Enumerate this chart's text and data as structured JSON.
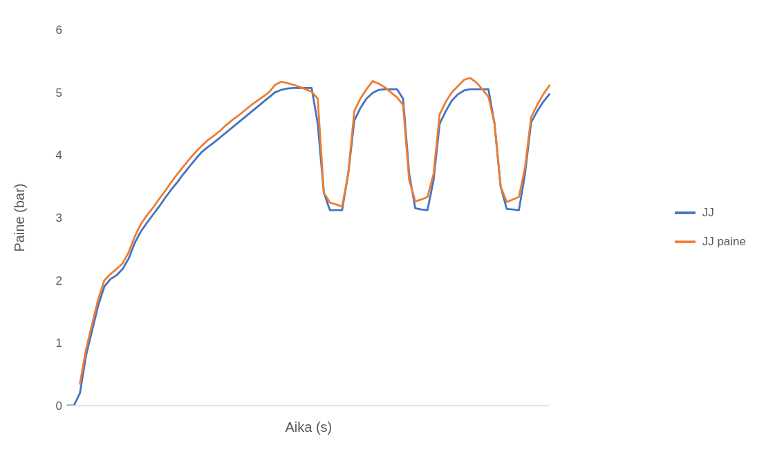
{
  "chart_data": {
    "type": "line",
    "xlabel": "Aika (s)",
    "ylabel": "Paine (bar)",
    "categories": [
      null,
      null,
      null,
      null,
      null,
      null,
      null,
      null,
      null,
      null,
      null,
      null,
      null,
      null,
      null,
      null,
      null,
      null,
      null,
      null,
      null,
      null,
      null,
      null,
      null,
      null,
      null,
      null,
      null,
      null,
      null,
      null,
      null,
      null,
      null,
      null,
      null,
      null,
      null,
      null,
      null,
      null,
      null,
      null,
      null,
      null,
      null,
      null,
      null,
      null,
      null,
      null,
      null,
      null,
      null,
      null,
      null,
      null,
      null,
      null,
      null,
      null,
      null,
      null,
      null,
      null,
      null,
      null,
      null,
      null,
      null,
      null,
      null,
      null,
      null,
      null,
      null,
      null,
      null,
      null
    ],
    "series": [
      {
        "name": "JJ",
        "color": "#4472c4",
        "values": [
          0,
          0,
          0.2,
          0.8,
          1.2,
          1.6,
          1.9,
          2.02,
          2.08,
          2.18,
          2.35,
          2.6,
          2.78,
          2.92,
          3.05,
          3.18,
          3.32,
          3.45,
          3.57,
          3.7,
          3.82,
          3.94,
          4.05,
          4.13,
          4.2,
          4.28,
          4.36,
          4.44,
          4.52,
          4.6,
          4.68,
          4.76,
          4.84,
          4.92,
          5.0,
          5.04,
          5.06,
          5.07,
          5.07,
          5.07,
          5.07,
          4.5,
          3.4,
          3.12,
          3.12,
          3.12,
          3.7,
          4.55,
          4.75,
          4.9,
          4.99,
          5.04,
          5.05,
          5.05,
          5.05,
          4.9,
          3.7,
          3.15,
          3.13,
          3.12,
          3.6,
          4.5,
          4.7,
          4.87,
          4.97,
          5.03,
          5.05,
          5.05,
          5.05,
          5.05,
          4.5,
          3.5,
          3.14,
          3.13,
          3.12,
          3.7,
          4.52,
          4.7,
          4.85,
          4.97
        ]
      },
      {
        "name": "JJ paine",
        "color": "#ed7d31",
        "values": [
          null,
          null,
          0.35,
          0.9,
          1.3,
          1.7,
          2.0,
          2.1,
          2.18,
          2.27,
          2.45,
          2.7,
          2.9,
          3.04,
          3.16,
          3.3,
          3.43,
          3.57,
          3.7,
          3.82,
          3.94,
          4.05,
          4.15,
          4.24,
          4.31,
          4.39,
          4.48,
          4.56,
          4.63,
          4.71,
          4.79,
          4.86,
          4.93,
          5.0,
          5.12,
          5.17,
          5.15,
          5.12,
          5.09,
          5.05,
          5.01,
          4.9,
          3.4,
          3.24,
          3.21,
          3.18,
          3.7,
          4.7,
          4.9,
          5.05,
          5.18,
          5.14,
          5.08,
          5.0,
          4.92,
          4.8,
          3.6,
          3.26,
          3.29,
          3.33,
          3.7,
          4.65,
          4.85,
          5.0,
          5.1,
          5.2,
          5.23,
          5.16,
          5.05,
          4.93,
          4.5,
          3.5,
          3.25,
          3.29,
          3.33,
          3.8,
          4.6,
          4.8,
          4.97,
          5.11
        ]
      }
    ],
    "ylim": [
      0,
      6
    ],
    "yticks": [
      0,
      1,
      2,
      3,
      4,
      5,
      6
    ],
    "grid": false,
    "legend": "right",
    "marker": "none",
    "line_style": "solid"
  }
}
